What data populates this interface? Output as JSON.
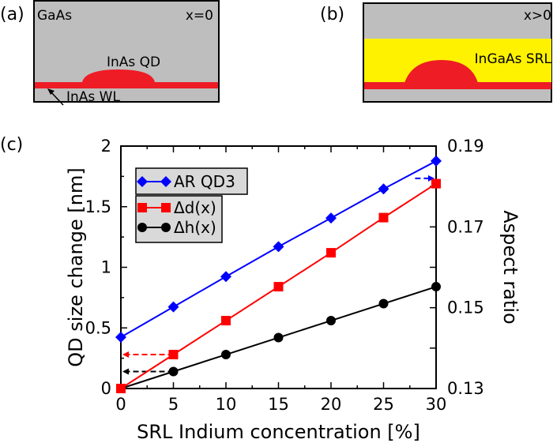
{
  "panels": {
    "a": {
      "label": "(a)",
      "material": "GaAs",
      "condition": "x=0",
      "qd_label": "InAs QD",
      "wl_label": "InAs WL"
    },
    "b": {
      "label": "(b)",
      "condition": "x>0",
      "srl_label": "InGaAs SRL"
    },
    "c": {
      "label": "(c)"
    }
  },
  "colors": {
    "gaas": "#bebebe",
    "inas": "#ee1c25",
    "srl": "#fff200",
    "blue": "#0000ff",
    "red": "#ff0000",
    "black": "#000000",
    "legend_bg": "#d9d9d9"
  },
  "chart_data": {
    "type": "line",
    "xlabel": "SRL Indium concentration [%]",
    "ylabel": "QD size change [nm]",
    "y2label": "Aspect ratio",
    "xlim": [
      0,
      30
    ],
    "ylim": [
      0,
      2
    ],
    "y2lim": [
      0.13,
      0.19
    ],
    "xticks": [
      "0",
      "5",
      "10",
      "15",
      "20",
      "25",
      "30"
    ],
    "yticks": [
      "0",
      "0.5",
      "1",
      "1.5",
      "2"
    ],
    "y2ticks": [
      "0.13",
      "0.15",
      "0.17",
      "0.19"
    ],
    "x": [
      0,
      5,
      10,
      15,
      20,
      25,
      30
    ],
    "series": [
      {
        "name": "AR QD3",
        "axis": "right",
        "marker": "diamond",
        "color": "#0000ff",
        "values": [
          0.1427,
          0.1502,
          0.1577,
          0.1651,
          0.1722,
          0.1794,
          0.1863
        ]
      },
      {
        "name": "Δd(x)",
        "axis": "left",
        "marker": "square",
        "color": "#ff0000",
        "values": [
          0,
          0.28,
          0.56,
          0.84,
          1.12,
          1.41,
          1.69
        ]
      },
      {
        "name": "Δh(x)",
        "axis": "left",
        "marker": "circle",
        "color": "#000000",
        "values": [
          0,
          0.14,
          0.28,
          0.42,
          0.56,
          0.7,
          0.84
        ]
      }
    ],
    "legend": "top-left",
    "grid": false
  }
}
